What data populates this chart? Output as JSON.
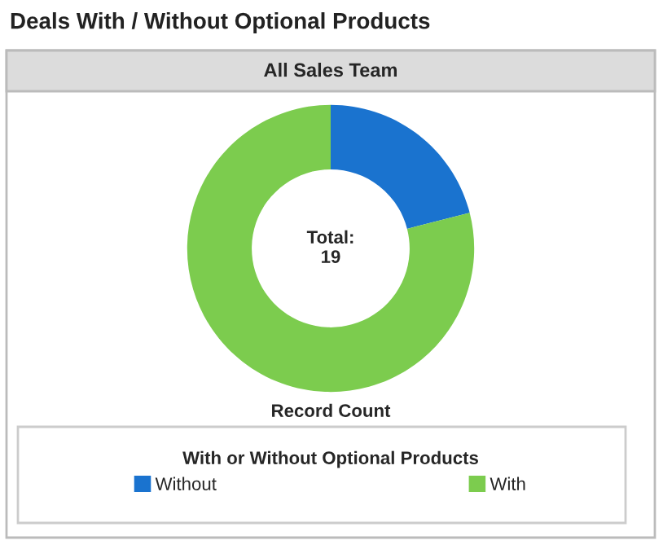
{
  "chart_data": {
    "type": "donut",
    "title": "Deals With / Without Optional Products",
    "subtitle": "All Sales Team",
    "xlabel": "Record Count",
    "legend_title": "With or Without Optional Products",
    "categories": [
      "Without",
      "With"
    ],
    "values": [
      21,
      79
    ],
    "colors": [
      "#1a73cf",
      "#7ccc4e"
    ],
    "annotations": [
      "Total:\n19"
    ],
    "legend": "bottom"
  }
}
